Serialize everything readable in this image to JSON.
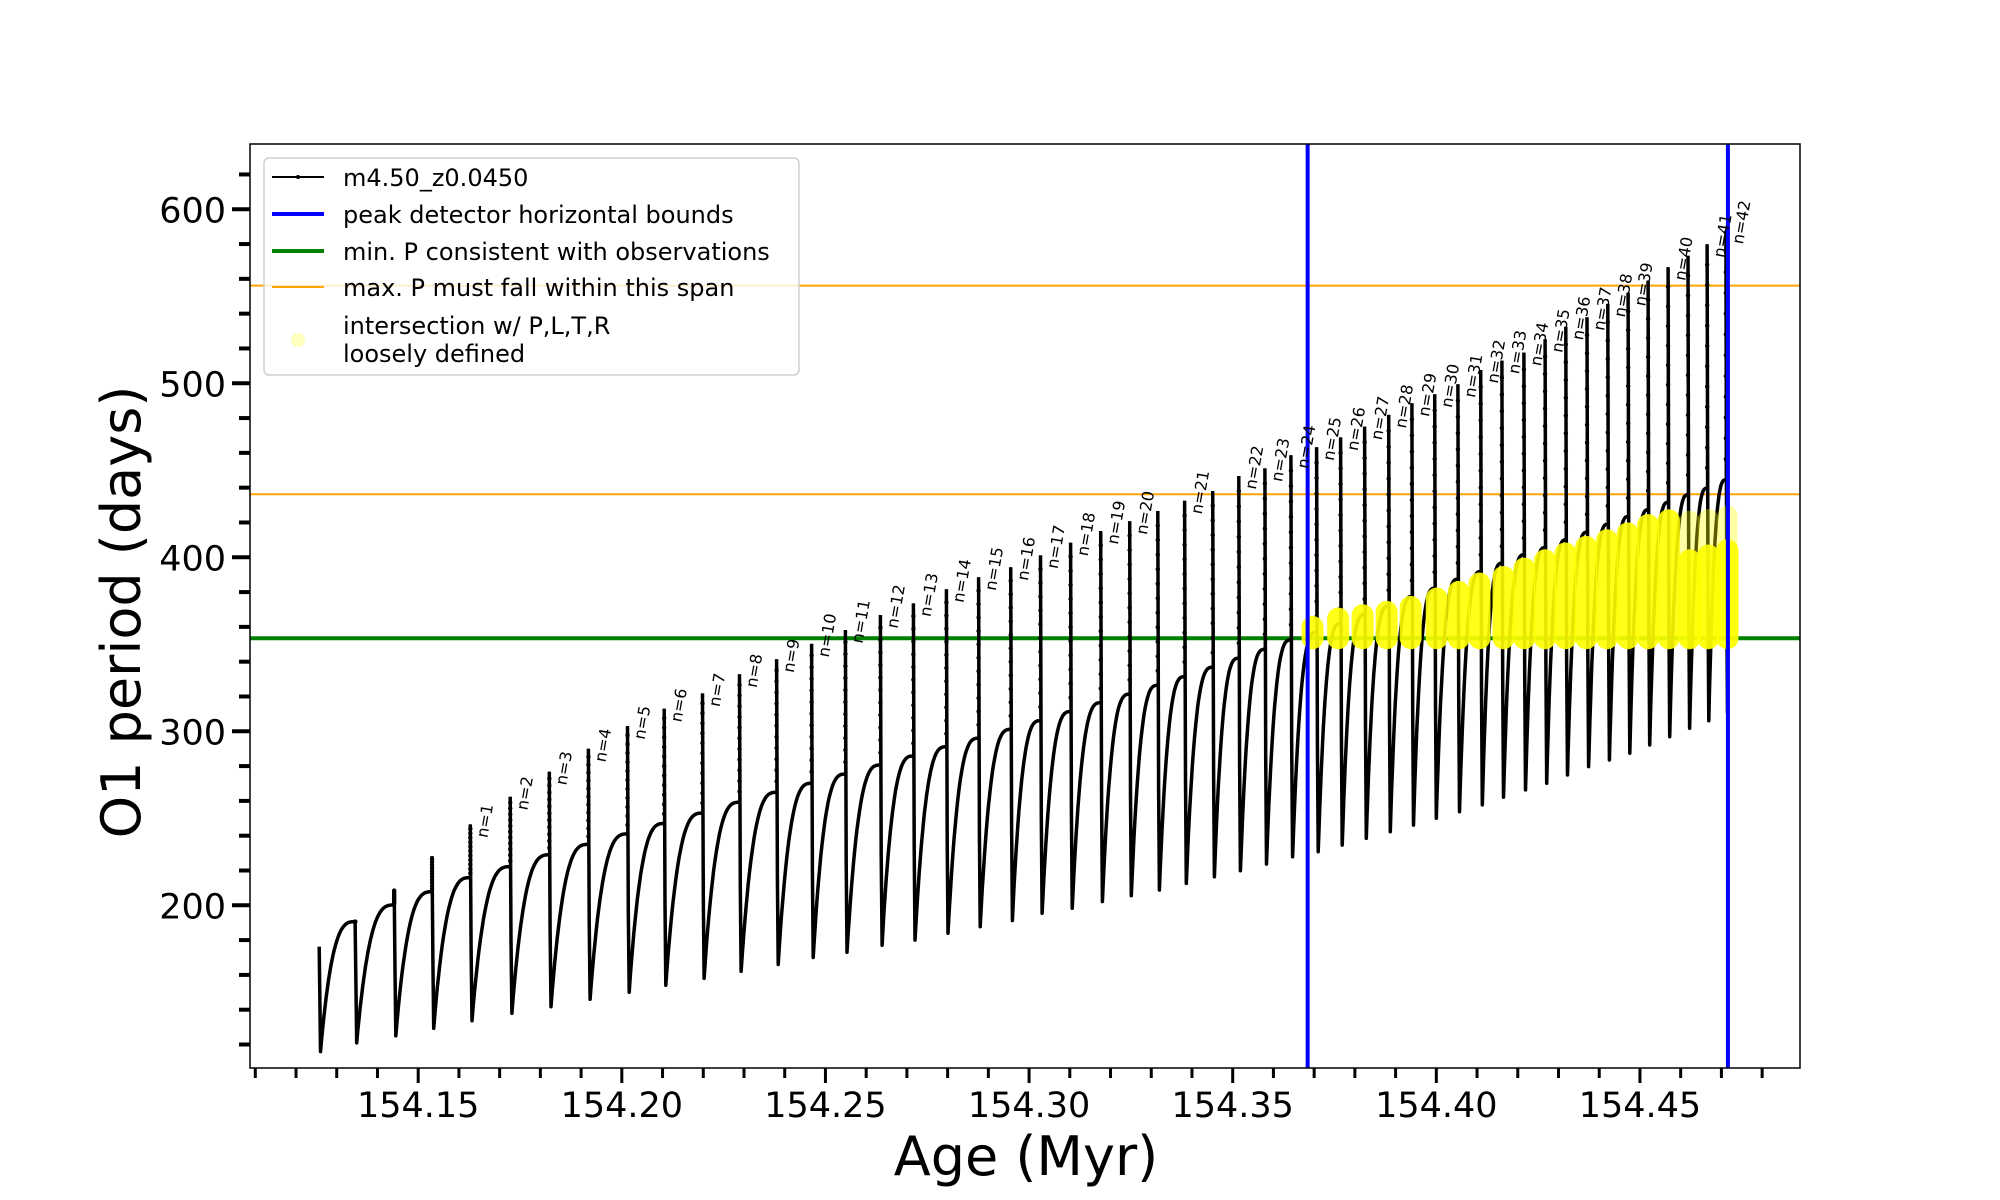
{
  "chart_data": {
    "type": "line",
    "title": "",
    "xlabel": "Age (Myr)",
    "ylabel": "O1 period (days)",
    "xlim": [
      154.1087,
      154.4893
    ],
    "ylim": [
      106.5,
      637.5
    ],
    "xticks": [
      "154.15",
      "154.20",
      "154.25",
      "154.30",
      "154.35",
      "154.40",
      "154.45"
    ],
    "yticks": [
      "200",
      "300",
      "400",
      "500",
      "600"
    ],
    "grid": false,
    "legend_position": "top-left",
    "legend": [
      {
        "label": "m4.50_z0.0450",
        "kind": "line-marker",
        "color": "#000000"
      },
      {
        "label": "peak detector horizontal bounds",
        "kind": "line",
        "color": "#0000ff"
      },
      {
        "label": "min. P consistent with observations",
        "kind": "line",
        "color": "#008000"
      },
      {
        "label": "max. P must fall within this span",
        "kind": "line",
        "color": "#ffa500"
      },
      {
        "label": "intersection w/ P,L,T,R",
        "label2": "loosely defined",
        "kind": "dot",
        "color": "#ffff00"
      }
    ],
    "vertical_lines": {
      "color": "#0000ff",
      "ages": [
        154.3684,
        154.4716
      ]
    },
    "min_period_line": {
      "color": "#008000",
      "period": 353.5
    },
    "max_period_span": {
      "color": "#ffa500",
      "periods": [
        436.2,
        556.1
      ]
    },
    "series": [
      {
        "name": "m4.50_z0.0450",
        "color": "#000000",
        "start": {
          "age": 154.1257,
          "period": 176.2,
          "trough": 115.9
        },
        "pulses": [
          {
            "age": 154.1345,
            "label": "",
            "plateau": 190.6,
            "spike": 190.6,
            "trough": 120.9
          },
          {
            "age": 154.1441,
            "label": "",
            "plateau": 200.2,
            "spike": 209.2,
            "trough": 125.0
          },
          {
            "age": 154.1534,
            "label": "",
            "plateau": 207.8,
            "spike": 228.3,
            "trough": 129.3
          },
          {
            "age": 154.1628,
            "label": "n=1",
            "plateau": 215.9,
            "spike": 246.5,
            "trough": 133.7
          },
          {
            "age": 154.1726,
            "label": "n=2",
            "plateau": 222.2,
            "spike": 262.4,
            "trough": 137.9
          },
          {
            "age": 154.1822,
            "label": "n=3",
            "plateau": 229.0,
            "spike": 276.8,
            "trough": 141.7
          },
          {
            "age": 154.1918,
            "label": "n=4",
            "plateau": 235.0,
            "spike": 290.0,
            "trough": 146.0
          },
          {
            "age": 154.2014,
            "label": "n=5",
            "plateau": 241.0,
            "spike": 303.0,
            "trough": 150.0
          },
          {
            "age": 154.2104,
            "label": "n=6",
            "plateau": 247.0,
            "spike": 313.0,
            "trough": 154.0
          },
          {
            "age": 154.2198,
            "label": "n=7",
            "plateau": 253.0,
            "spike": 321.8,
            "trough": 158.0
          },
          {
            "age": 154.2289,
            "label": "n=8",
            "plateau": 259.2,
            "spike": 332.8,
            "trough": 162.0
          },
          {
            "age": 154.238,
            "label": "n=9",
            "plateau": 264.9,
            "spike": 341.4,
            "trough": 166.0
          },
          {
            "age": 154.2466,
            "label": "n=10",
            "plateau": 270.1,
            "spike": 350.2,
            "trough": 170.0
          },
          {
            "age": 154.2549,
            "label": "n=11",
            "plateau": 275.4,
            "spike": 358.2,
            "trough": 173.0
          },
          {
            "age": 154.2635,
            "label": "n=12",
            "plateau": 280.6,
            "spike": 366.8,
            "trough": 177.0
          },
          {
            "age": 154.2716,
            "label": "n=13",
            "plateau": 285.8,
            "spike": 373.5,
            "trough": 180.0
          },
          {
            "age": 154.2797,
            "label": "n=14",
            "plateau": 291.1,
            "spike": 381.6,
            "trough": 183.9
          },
          {
            "age": 154.2876,
            "label": "n=15",
            "plateau": 296.0,
            "spike": 388.5,
            "trough": 187.7
          },
          {
            "age": 154.2955,
            "label": "n=16",
            "plateau": 301.1,
            "spike": 394.3,
            "trough": 191.2
          },
          {
            "age": 154.3028,
            "label": "n=17",
            "plateau": 306.1,
            "spike": 401.1,
            "trough": 195.4
          },
          {
            "age": 154.3102,
            "label": "n=18",
            "plateau": 311.3,
            "spike": 408.4,
            "trough": 198.3
          },
          {
            "age": 154.3176,
            "label": "n=19",
            "plateau": 316.4,
            "spike": 415.1,
            "trough": 202.1
          },
          {
            "age": 154.3247,
            "label": "n=20",
            "plateau": 321.3,
            "spike": 420.7,
            "trough": 205.5
          },
          {
            "age": 154.3316,
            "label": "",
            "plateau": 326.4,
            "spike": 426.6,
            "trough": 208.8
          },
          {
            "age": 154.3382,
            "label": "n=21",
            "plateau": 331.4,
            "spike": 432.5,
            "trough": 212.6
          },
          {
            "age": 154.3451,
            "label": "",
            "plateau": 336.8,
            "spike": 438.1,
            "trough": 216.4
          },
          {
            "age": 154.3515,
            "label": "n=22",
            "plateau": 342.0,
            "spike": 446.7,
            "trough": 219.9
          },
          {
            "age": 154.3579,
            "label": "n=23",
            "plateau": 347.1,
            "spike": 451.1,
            "trough": 223.7
          },
          {
            "age": 154.3643,
            "label": "n=24",
            "plateau": 352.5,
            "spike": 458.6,
            "trough": 227.9
          },
          {
            "age": 154.3706,
            "label": "n=25",
            "plateau": 357.0,
            "spike": 463.2,
            "trough": 230.8
          },
          {
            "age": 154.3765,
            "label": "n=26",
            "plateau": 362.0,
            "spike": 468.9,
            "trough": 234.6
          },
          {
            "age": 154.3824,
            "label": "n=27",
            "plateau": 367.0,
            "spike": 475.1,
            "trough": 238.5
          },
          {
            "age": 154.3883,
            "label": "n=28",
            "plateau": 372.0,
            "spike": 481.8,
            "trough": 242.3
          },
          {
            "age": 154.394,
            "label": "n=29",
            "plateau": 377.4,
            "spike": 488.5,
            "trough": 246.1
          },
          {
            "age": 154.3996,
            "label": "n=30",
            "plateau": 382.2,
            "spike": 493.7,
            "trough": 250.0
          },
          {
            "age": 154.4053,
            "label": "n=31",
            "plateau": 387.4,
            "spike": 499.4,
            "trough": 253.8
          },
          {
            "age": 154.4109,
            "label": "n=32",
            "plateau": 391.8,
            "spike": 507.6,
            "trough": 257.7
          },
          {
            "age": 154.4161,
            "label": "n=33",
            "plateau": 396.6,
            "spike": 513.0,
            "trough": 262.1
          },
          {
            "age": 154.4215,
            "label": "n=34",
            "plateau": 401.4,
            "spike": 517.6,
            "trough": 266.3
          },
          {
            "age": 154.4267,
            "label": "n=35",
            "plateau": 405.6,
            "spike": 525.3,
            "trough": 270.1
          },
          {
            "age": 154.4318,
            "label": "n=36",
            "plateau": 410.0,
            "spike": 532.5,
            "trough": 274.9
          },
          {
            "age": 154.437,
            "label": "n=37",
            "plateau": 414.4,
            "spike": 537.9,
            "trough": 279.7
          },
          {
            "age": 154.4421,
            "label": "n=38",
            "plateau": 419.0,
            "spike": 545.6,
            "trough": 283.5
          },
          {
            "age": 154.4471,
            "label": "n=39",
            "plateau": 423.4,
            "spike": 552.0,
            "trough": 287.4
          },
          {
            "age": 154.452,
            "label": "",
            "plateau": 427.3,
            "spike": 559.0,
            "trough": 292.1
          },
          {
            "age": 154.4569,
            "label": "n=40",
            "plateau": 431.5,
            "spike": 566.7,
            "trough": 296.9
          },
          {
            "age": 154.4618,
            "label": "",
            "plateau": 435.9,
            "spike": 573.3,
            "trough": 301.7
          },
          {
            "age": 154.4665,
            "label": "n=41",
            "plateau": 439.7,
            "spike": 579.9,
            "trough": 306.1
          },
          {
            "age": 154.4711,
            "label": "n=42",
            "plateau": 444.5,
            "spike": 587.7,
            "trough": 310.3
          }
        ]
      },
      {
        "name": "intersection w/ P,L,T,R loosely defined",
        "color": "#ffff00",
        "bottom": 353.5,
        "columns": [
          {
            "age": 154.3696,
            "top": 360.0
          },
          {
            "age": 154.3759,
            "top": 364.8
          },
          {
            "age": 154.3819,
            "top": 366.7
          },
          {
            "age": 154.3878,
            "top": 368.6
          },
          {
            "age": 154.3937,
            "top": 371.5
          },
          {
            "age": 154.4001,
            "top": 376.3
          },
          {
            "age": 154.4055,
            "top": 380.1
          },
          {
            "age": 154.4106,
            "top": 384.9
          },
          {
            "age": 154.4165,
            "top": 388.7
          },
          {
            "age": 154.4216,
            "top": 393.5
          },
          {
            "age": 154.4267,
            "top": 398.3
          },
          {
            "age": 154.4317,
            "top": 402.2
          },
          {
            "age": 154.4368,
            "top": 406.0
          },
          {
            "age": 154.4419,
            "top": 409.8
          },
          {
            "age": 154.447,
            "top": 413.7
          },
          {
            "age": 154.452,
            "top": 418.5
          },
          {
            "age": 154.4571,
            "top": 421.3
          },
          {
            "age": 154.4622,
            "top": 398.3,
            "faint_top": 421.0
          },
          {
            "age": 154.4668,
            "top": 401.0,
            "faint_top": 422.0
          },
          {
            "age": 154.4715,
            "top": 404.0,
            "faint_top": 424.0
          }
        ]
      }
    ]
  }
}
